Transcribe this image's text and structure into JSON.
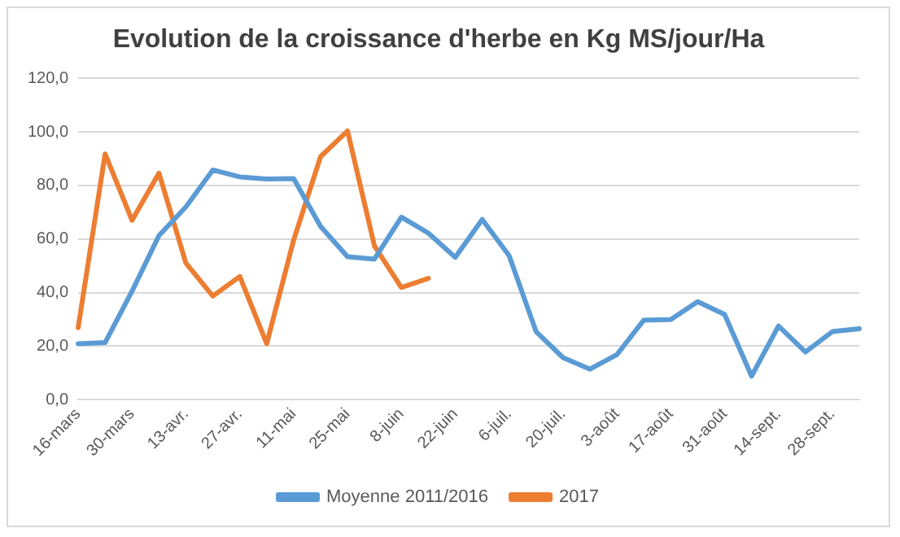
{
  "chart_data": {
    "type": "line",
    "title": "Evolution de la croissance d'herbe en Kg MS/jour/Ha",
    "categories": [
      "16-mars",
      null,
      "30-mars",
      null,
      "13-avr.",
      null,
      "27-avr.",
      null,
      "11-mai",
      null,
      "25-mai",
      null,
      "8-juin",
      null,
      "22-juin",
      null,
      "6-juil.",
      null,
      "20-juil.",
      null,
      "3-août",
      null,
      "17-août",
      null,
      "31-août",
      null,
      "14-sept.",
      null,
      "28-sept.",
      null
    ],
    "series": [
      {
        "name": "Moyenne 2011/2016",
        "color": "#5b9bd5",
        "values": [
          20.9,
          21.3,
          40.5,
          61.3,
          72,
          85.8,
          83.2,
          82.4,
          82.6,
          64.7,
          53.4,
          52.5,
          68.2,
          62.2,
          53.2,
          67.3,
          53.8,
          25.4,
          15.7,
          11.4,
          16.8,
          29.7,
          29.9,
          36.6,
          31.8,
          8.8,
          27.5,
          17.8,
          25.4,
          26.5
        ]
      },
      {
        "name": "2017",
        "color": "#ed7d31",
        "values": [
          26.9,
          91.8,
          67,
          84.6,
          51,
          38.7,
          46,
          20.9,
          59.6,
          90.8,
          100.4,
          57.4,
          41.9,
          45.3,
          null,
          null,
          null,
          null,
          null,
          null,
          null,
          null,
          null,
          null,
          null,
          null,
          null,
          null,
          null,
          null
        ]
      }
    ],
    "ylim": [
      0,
      120
    ],
    "yticks": [
      {
        "value": 0,
        "label": "0,0"
      },
      {
        "value": 20,
        "label": "20,0"
      },
      {
        "value": 40,
        "label": "40,0"
      },
      {
        "value": 60,
        "label": "60,0"
      },
      {
        "value": 80,
        "label": "80,0"
      },
      {
        "value": 100,
        "label": "100,0"
      },
      {
        "value": 120,
        "label": "120,0"
      }
    ],
    "grid": "y",
    "legend": "bottom",
    "marker": "none",
    "line_style": "solid"
  }
}
